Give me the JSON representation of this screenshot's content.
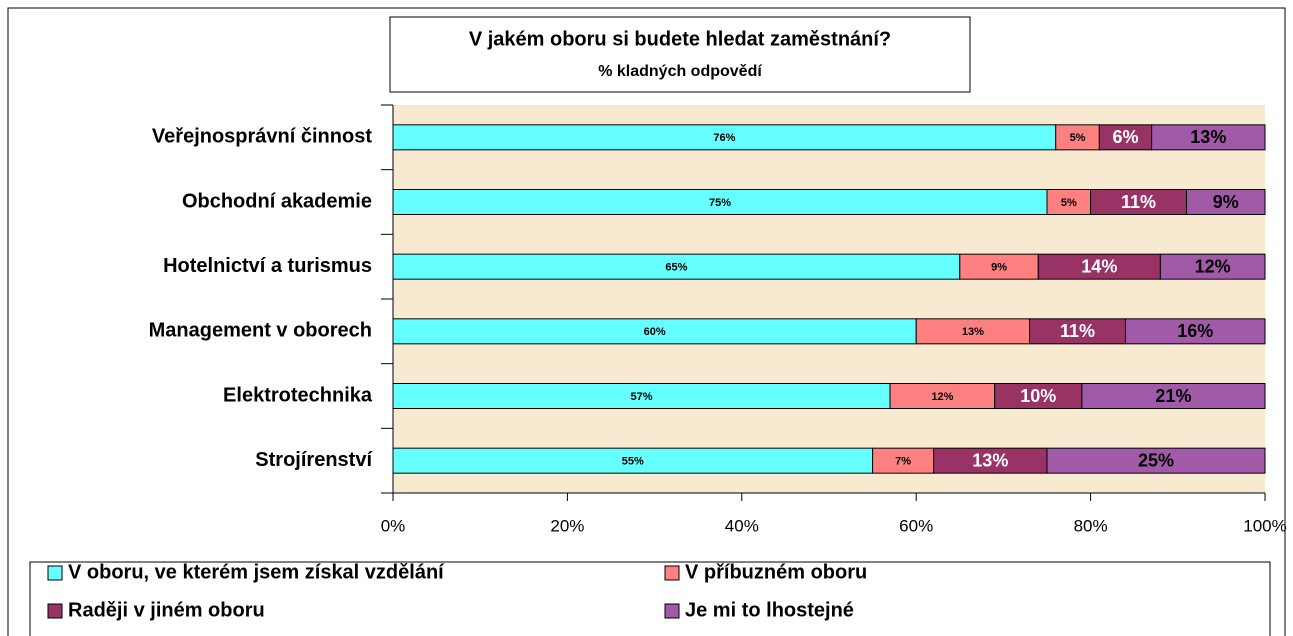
{
  "chart_data": {
    "type": "stacked_barh",
    "title": "V jakém oboru si budete hledat zaměstnání?",
    "subtitle": "% kladných odpovědí",
    "categories": [
      "Veřejnosprávní činnost",
      "Obchodní akademie",
      "Hotelnictví a turismus",
      "Management v oborech",
      "Elektrotechnika",
      "Strojírenství"
    ],
    "series": [
      {
        "name": "V oboru, ve kterém jsem získal vzdělání",
        "color": "#66ffff",
        "values": [
          76,
          75,
          65,
          60,
          57,
          55
        ],
        "value_labels": [
          "76%",
          "75%",
          "65%",
          "60%",
          "57%",
          "55%"
        ]
      },
      {
        "name": "V příbuzném oboru",
        "color": "#ff8080",
        "values": [
          5,
          5,
          9,
          13,
          12,
          7
        ],
        "value_labels": [
          "5%",
          "5%",
          "9%",
          "13%",
          "12%",
          "7%"
        ]
      },
      {
        "name": "Raději v jiném oboru",
        "color": "#993366",
        "values": [
          6,
          11,
          14,
          11,
          10,
          13
        ],
        "value_labels": [
          "6%",
          "11%",
          "14%",
          "11%",
          "10%",
          "13%"
        ]
      },
      {
        "name": "Je mi to lhostejné",
        "color": "#a05aa8",
        "values": [
          13,
          9,
          12,
          16,
          21,
          25
        ],
        "value_labels": [
          "13%",
          "9%",
          "12%",
          "16%",
          "21%",
          "25%"
        ]
      }
    ],
    "xlim": [
      0,
      100
    ],
    "xticks": [
      {
        "value": 0,
        "label": "0%"
      },
      {
        "value": 20,
        "label": "20%"
      },
      {
        "value": 40,
        "label": "40%"
      },
      {
        "value": 60,
        "label": "60%"
      },
      {
        "value": 80,
        "label": "80%"
      },
      {
        "value": 100,
        "label": "100%"
      }
    ],
    "legend": "bottom"
  }
}
